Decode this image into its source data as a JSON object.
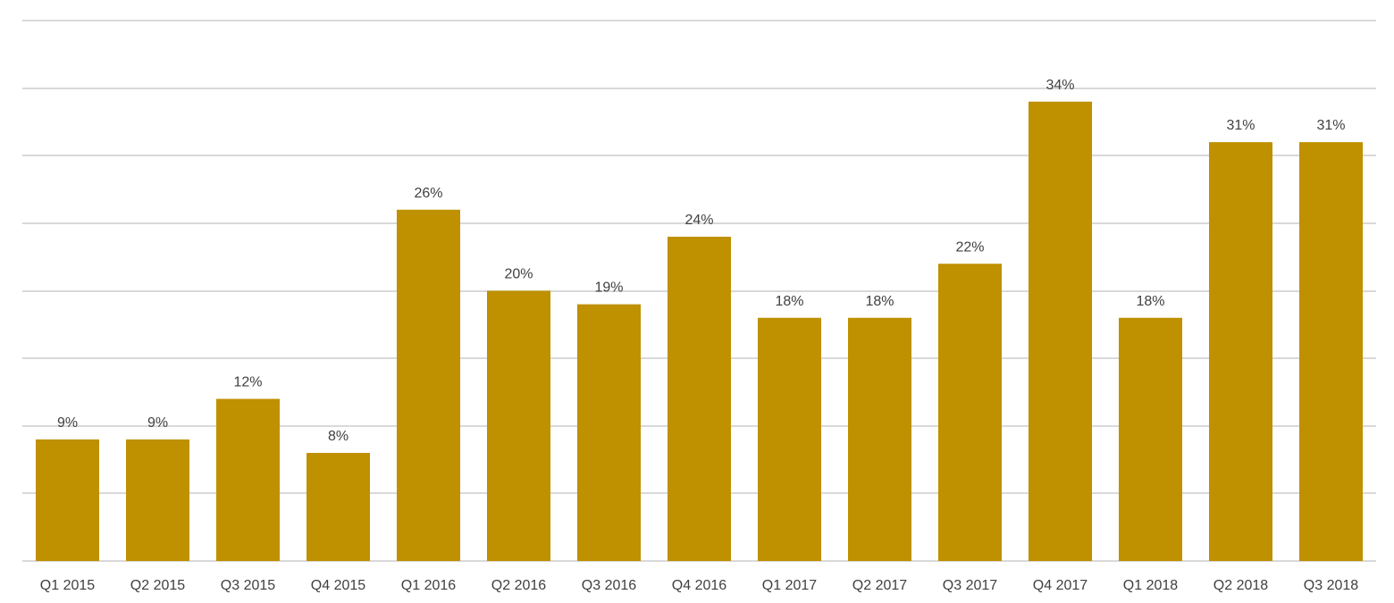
{
  "chart_data": {
    "type": "bar",
    "categories": [
      "Q1 2015",
      "Q2 2015",
      "Q3 2015",
      "Q4 2015",
      "Q1 2016",
      "Q2 2016",
      "Q3 2016",
      "Q4 2016",
      "Q1 2017",
      "Q2 2017",
      "Q3 2017",
      "Q4 2017",
      "Q1 2018",
      "Q2 2018",
      "Q3 2018"
    ],
    "values": [
      9,
      9,
      12,
      8,
      26,
      20,
      19,
      24,
      18,
      18,
      22,
      34,
      18,
      31,
      31
    ],
    "value_labels": [
      "9%",
      "9%",
      "12%",
      "8%",
      "26%",
      "20%",
      "19%",
      "24%",
      "18%",
      "18%",
      "22%",
      "34%",
      "18%",
      "31%",
      "31%"
    ],
    "ylim": [
      0,
      40
    ],
    "gridline_step": 5,
    "grid": true,
    "bar_color": "#BF9000",
    "title": "",
    "xlabel": "",
    "ylabel": ""
  }
}
